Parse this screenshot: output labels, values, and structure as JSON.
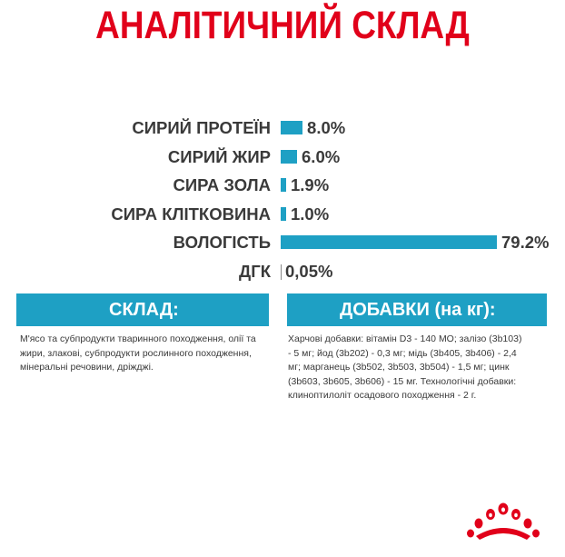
{
  "title": "АНАЛІТИЧНИЙ СКЛАД",
  "brand_color": "#e1001a",
  "accent_color": "#1ea0c4",
  "chart_data": {
    "type": "bar",
    "orientation": "horizontal",
    "categories": [
      "СИРИЙ ПРОТЕЇН",
      "СИРИЙ ЖИР",
      "СИРА ЗОЛА",
      "СИРА КЛІТКОВИНА",
      "ВОЛОГІСТЬ",
      "ДГК"
    ],
    "values": [
      8.0,
      6.0,
      1.9,
      1.0,
      79.2,
      0.05
    ],
    "value_labels": [
      "8.0%",
      "6.0%",
      "1.9%",
      "1.0%",
      "79.2%",
      "0,05%"
    ],
    "unit": "%"
  },
  "composition": {
    "heading": "СКЛАД:",
    "text": "М'ясо та субпродукти тваринного походження, олії та жири, злакові, субпродукти рослинного походження, мінеральні речовини, дріжджі."
  },
  "additives": {
    "heading": "ДОБАВКИ (на кг):",
    "text": "Харчові добавки: вітамін D3 - 140 МО; залізо (3b103) - 5 мг; йод (3b202) - 0,3 мг; мідь (3b405, 3b406) - 2,4 мг; марганець (3b502, 3b503, 3b504) - 1,5 мг; цинк (3b603, 3b605, 3b606) - 15 мг. Технологічні добавки: клиноптилоліт осадового походження - 2 г."
  },
  "logo": {
    "icon": "crown-icon"
  }
}
